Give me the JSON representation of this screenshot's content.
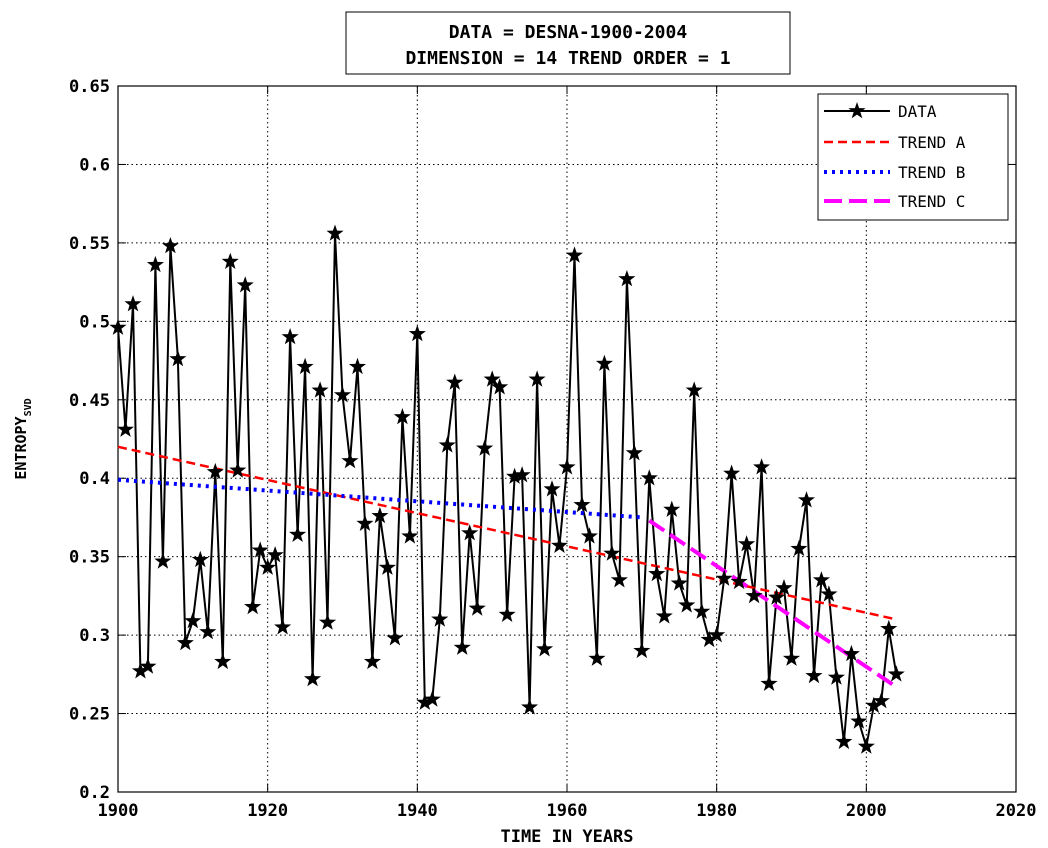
{
  "chart_data": {
    "type": "line",
    "title_lines": [
      "DATA = DESNA-1900-2004",
      "DIMENSION = 14 TREND ORDER = 1"
    ],
    "xlabel": "TIME IN YEARS",
    "ylabel": "ENTROPY",
    "ylabel_subscript": "SVD",
    "xlim": [
      1900,
      2020
    ],
    "ylim": [
      0.2,
      0.65
    ],
    "x_ticks": [
      1900,
      1920,
      1940,
      1960,
      1980,
      2000,
      2020
    ],
    "x_tick_labels": [
      "1900",
      "1920",
      "1940",
      "1960",
      "1980",
      "2000",
      "2020"
    ],
    "y_ticks": [
      0.2,
      0.25,
      0.3,
      0.35,
      0.4,
      0.45,
      0.5,
      0.55,
      0.6,
      0.65
    ],
    "y_tick_labels": [
      "0.2",
      "0.25",
      "0.3",
      "0.35",
      "0.4",
      "0.45",
      "0.5",
      "0.55",
      "0.6",
      "0.65"
    ],
    "grid": true,
    "legend_position": "top-right",
    "series": [
      {
        "name": "DATA",
        "color": "#000000",
        "style": "solid-star",
        "x": [
          1900,
          1901,
          1902,
          1903,
          1904,
          1905,
          1906,
          1907,
          1908,
          1909,
          1910,
          1911,
          1912,
          1913,
          1914,
          1915,
          1916,
          1917,
          1918,
          1919,
          1920,
          1921,
          1922,
          1923,
          1924,
          1925,
          1926,
          1927,
          1928,
          1929,
          1930,
          1931,
          1932,
          1933,
          1934,
          1935,
          1936,
          1937,
          1938,
          1939,
          1940,
          1941,
          1942,
          1943,
          1944,
          1945,
          1946,
          1947,
          1948,
          1949,
          1950,
          1951,
          1952,
          1953,
          1954,
          1955,
          1956,
          1957,
          1958,
          1959,
          1960,
          1961,
          1962,
          1963,
          1964,
          1965,
          1966,
          1967,
          1968,
          1969,
          1970,
          1971,
          1972,
          1973,
          1974,
          1975,
          1976,
          1977,
          1978,
          1979,
          1980,
          1981,
          1982,
          1983,
          1984,
          1985,
          1986,
          1987,
          1988,
          1989,
          1990,
          1991,
          1992,
          1993,
          1994,
          1995,
          1996,
          1997,
          1998,
          1999,
          2000,
          2001,
          2002,
          2003,
          2004
        ],
        "y": [
          0.496,
          0.431,
          0.511,
          0.277,
          0.28,
          0.536,
          0.347,
          0.548,
          0.476,
          0.295,
          0.309,
          0.348,
          0.302,
          0.404,
          0.283,
          0.538,
          0.405,
          0.523,
          0.318,
          0.354,
          0.343,
          0.351,
          0.305,
          0.49,
          0.364,
          0.471,
          0.272,
          0.456,
          0.308,
          0.556,
          0.453,
          0.411,
          0.471,
          0.371,
          0.283,
          0.376,
          0.343,
          0.298,
          0.439,
          0.363,
          0.492,
          0.257,
          0.259,
          0.31,
          0.421,
          0.461,
          0.292,
          0.365,
          0.317,
          0.419,
          0.463,
          0.458,
          0.313,
          0.401,
          0.402,
          0.254,
          0.463,
          0.291,
          0.393,
          0.357,
          0.407,
          0.542,
          0.383,
          0.363,
          0.285,
          0.473,
          0.352,
          0.335,
          0.527,
          0.416,
          0.29,
          0.4,
          0.339,
          0.312,
          0.38,
          0.333,
          0.319,
          0.456,
          0.315,
          0.297,
          0.3,
          0.336,
          0.403,
          0.334,
          0.358,
          0.325,
          0.407,
          0.269,
          0.324,
          0.33,
          0.285,
          0.355,
          0.386,
          0.274,
          0.335,
          0.326,
          0.273,
          0.232,
          0.288,
          0.245,
          0.229,
          0.255,
          0.258,
          0.304,
          0.275
        ]
      },
      {
        "name": "TREND A",
        "color": "#ff0000",
        "style": "dashed",
        "x": [
          1900,
          2004
        ],
        "y": [
          0.42,
          0.31
        ]
      },
      {
        "name": "TREND B",
        "color": "#0000ff",
        "style": "dotted",
        "x": [
          1900,
          1970
        ],
        "y": [
          0.399,
          0.375
        ]
      },
      {
        "name": "TREND C",
        "color": "#ff00ff",
        "style": "long-dashed",
        "x": [
          1971,
          2004
        ],
        "y": [
          0.373,
          0.267
        ]
      }
    ]
  }
}
